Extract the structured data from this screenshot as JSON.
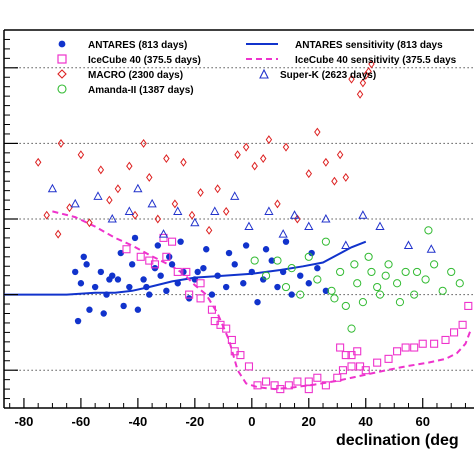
{
  "chart_data": {
    "type": "scatter",
    "title": "",
    "xlabel": "declination (deg",
    "ylabel": "",
    "xlim": [
      -87,
      78
    ],
    "ylim": [
      0,
      10
    ],
    "xticks": [
      -80,
      -60,
      -40,
      -20,
      0,
      20,
      40,
      60
    ],
    "xtick_labels": [
      "-80",
      "-60",
      "-40",
      "-20",
      "0",
      "20",
      "40",
      "60"
    ],
    "ytick_labels_visible": false,
    "grid": "horizontal-dotted",
    "legend_position": "top",
    "series": [
      {
        "name": "ANTARES (813 days)",
        "kind": "points",
        "marker": "filled-circle",
        "color": "#1133cc",
        "points": [
          [
            -62,
            3.6
          ],
          [
            -60,
            3.3
          ],
          [
            -58,
            3.8
          ],
          [
            -57,
            2.6
          ],
          [
            -55,
            3.2
          ],
          [
            -53,
            3.6
          ],
          [
            -51,
            3.0
          ],
          [
            -49,
            3.5
          ],
          [
            -47,
            3.4
          ],
          [
            -45,
            2.7
          ],
          [
            -43,
            3.2
          ],
          [
            -42,
            3.8
          ],
          [
            -40,
            2.6
          ],
          [
            -38,
            3.4
          ],
          [
            -36,
            3.0
          ],
          [
            -34,
            3.7
          ],
          [
            -32,
            3.5
          ],
          [
            -30,
            3.1
          ],
          [
            -28,
            3.8
          ],
          [
            -26,
            3.3
          ],
          [
            -24,
            3.6
          ],
          [
            -22,
            2.9
          ],
          [
            -20,
            3.4
          ],
          [
            -17,
            3.7
          ],
          [
            -14,
            3.0
          ],
          [
            -12,
            3.5
          ],
          [
            -9,
            3.2
          ],
          [
            -6,
            3.8
          ],
          [
            -3,
            3.3
          ],
          [
            0,
            3.6
          ],
          [
            2,
            2.8
          ],
          [
            4,
            3.4
          ],
          [
            7,
            3.9
          ],
          [
            9,
            3.2
          ],
          [
            11,
            3.6
          ],
          [
            14,
            3.0
          ],
          [
            17,
            3.5
          ],
          [
            20,
            3.3
          ],
          [
            23,
            3.7
          ],
          [
            26,
            3.1
          ],
          [
            -61,
            2.3
          ],
          [
            -52,
            2.5
          ],
          [
            -41,
            4.5
          ],
          [
            -33,
            4.3
          ],
          [
            -25,
            4.4
          ],
          [
            -16,
            4.2
          ],
          [
            -8,
            4.1
          ],
          [
            -2,
            4.3
          ],
          [
            5,
            4.2
          ],
          [
            12,
            4.4
          ],
          [
            21,
            4.1
          ],
          [
            -59,
            4.0
          ],
          [
            -46,
            4.1
          ],
          [
            -29,
            4.0
          ],
          [
            -50,
            3.4
          ],
          [
            -37,
            3.2
          ],
          [
            -19,
            3.6
          ]
        ]
      },
      {
        "name": "IceCube 40 (375.5 days)",
        "kind": "points",
        "marker": "open-square",
        "color": "#ee33cc",
        "points": [
          [
            -44,
            4.2
          ],
          [
            -39,
            4.0
          ],
          [
            -34,
            3.8
          ],
          [
            -30,
            4.0
          ],
          [
            -26,
            3.6
          ],
          [
            -22,
            3.0
          ],
          [
            -18,
            3.3
          ],
          [
            -14,
            2.6
          ],
          [
            -11,
            2.2
          ],
          [
            -9,
            2.1
          ],
          [
            -7,
            1.8
          ],
          [
            -4,
            1.4
          ],
          [
            -1,
            1.1
          ],
          [
            2,
            0.6
          ],
          [
            5,
            0.7
          ],
          [
            8,
            0.6
          ],
          [
            10,
            0.5
          ],
          [
            13,
            0.6
          ],
          [
            16,
            0.7
          ],
          [
            20,
            0.7
          ],
          [
            23,
            0.8
          ],
          [
            26,
            0.6
          ],
          [
            30,
            0.8
          ],
          [
            32,
            1.0
          ],
          [
            35,
            1.1
          ],
          [
            38,
            1.1
          ],
          [
            40,
            1.0
          ],
          [
            44,
            1.2
          ],
          [
            48,
            1.3
          ],
          [
            51,
            1.5
          ],
          [
            54,
            1.6
          ],
          [
            57,
            1.6
          ],
          [
            60,
            1.7
          ],
          [
            64,
            1.7
          ],
          [
            68,
            1.8
          ],
          [
            71,
            2.0
          ],
          [
            74,
            2.2
          ],
          [
            76,
            2.7
          ],
          [
            35,
            1.4
          ],
          [
            37,
            1.5
          ],
          [
            31,
            1.6
          ],
          [
            33,
            1.4
          ],
          [
            20,
            0.5
          ],
          [
            -6,
            1.5
          ],
          [
            -13,
            2.3
          ],
          [
            -18,
            2.9
          ],
          [
            -36,
            3.9
          ],
          [
            -31,
            4.5
          ],
          [
            -23,
            3.6
          ],
          [
            -28,
            4.4
          ]
        ]
      },
      {
        "name": "MACRO (2300 days)",
        "kind": "points",
        "marker": "open-diamond",
        "color": "#dd2222",
        "points": [
          [
            -75,
            6.5
          ],
          [
            -72,
            5.1
          ],
          [
            -68,
            4.6
          ],
          [
            -64,
            5.3
          ],
          [
            -60,
            6.7
          ],
          [
            -57,
            4.9
          ],
          [
            -53,
            6.3
          ],
          [
            -50,
            5.5
          ],
          [
            -47,
            5.8
          ],
          [
            -43,
            6.4
          ],
          [
            -41,
            5.1
          ],
          [
            -38,
            7.0
          ],
          [
            -36,
            6.1
          ],
          [
            -33,
            5.0
          ],
          [
            -30,
            6.6
          ],
          [
            -27,
            5.4
          ],
          [
            -24,
            6.5
          ],
          [
            -21,
            5.1
          ],
          [
            -18,
            5.7
          ],
          [
            -15,
            4.7
          ],
          [
            -12,
            5.8
          ],
          [
            -9,
            5.2
          ],
          [
            -5,
            6.7
          ],
          [
            -2,
            6.9
          ],
          [
            1,
            6.4
          ],
          [
            4,
            6.6
          ],
          [
            6,
            7.1
          ],
          [
            9,
            5.4
          ],
          [
            12,
            6.9
          ],
          [
            16,
            5.0
          ],
          [
            20,
            6.2
          ],
          [
            23,
            7.3
          ],
          [
            26,
            6.5
          ],
          [
            29,
            6.0
          ],
          [
            31,
            6.7
          ],
          [
            33,
            6.1
          ],
          [
            35,
            8.7
          ],
          [
            38,
            8.3
          ],
          [
            39,
            8.6
          ],
          [
            40,
            8.8
          ],
          [
            41,
            8.9
          ],
          [
            42,
            9.1
          ],
          [
            -67,
            7.0
          ]
        ]
      },
      {
        "name": "Super-K (2623 days)",
        "kind": "points",
        "marker": "open-triangle",
        "color": "#2233cc",
        "points": [
          [
            -70,
            5.8
          ],
          [
            -62,
            5.4
          ],
          [
            -54,
            5.6
          ],
          [
            -49,
            5.0
          ],
          [
            -43,
            5.2
          ],
          [
            -40,
            5.8
          ],
          [
            -35,
            5.4
          ],
          [
            -31,
            4.6
          ],
          [
            -26,
            5.2
          ],
          [
            -20,
            4.9
          ],
          [
            -13,
            5.2
          ],
          [
            -6,
            5.6
          ],
          [
            -1,
            4.8
          ],
          [
            6,
            5.2
          ],
          [
            11,
            4.6
          ],
          [
            15,
            5.1
          ],
          [
            20,
            4.8
          ],
          [
            26,
            5.0
          ],
          [
            33,
            4.3
          ],
          [
            39,
            5.1
          ],
          [
            45,
            4.8
          ],
          [
            55,
            4.3
          ],
          [
            63,
            4.2
          ]
        ]
      },
      {
        "name": "Amanda-II (1387 days)",
        "kind": "points",
        "marker": "open-circle",
        "color": "#33bb33",
        "points": [
          [
            1,
            3.9
          ],
          [
            5,
            3.5
          ],
          [
            9,
            3.9
          ],
          [
            12,
            3.2
          ],
          [
            14,
            3.7
          ],
          [
            17,
            3.0
          ],
          [
            20,
            4.0
          ],
          [
            23,
            3.4
          ],
          [
            26,
            4.4
          ],
          [
            28,
            3.1
          ],
          [
            31,
            3.6
          ],
          [
            33,
            2.7
          ],
          [
            35,
            2.1
          ],
          [
            37,
            3.3
          ],
          [
            39,
            2.8
          ],
          [
            42,
            3.6
          ],
          [
            45,
            3.0
          ],
          [
            48,
            3.8
          ],
          [
            51,
            3.3
          ],
          [
            54,
            3.6
          ],
          [
            57,
            3.0
          ],
          [
            61,
            3.4
          ],
          [
            64,
            3.8
          ],
          [
            67,
            3.1
          ],
          [
            70,
            3.6
          ],
          [
            73,
            3.3
          ],
          [
            41,
            4.0
          ],
          [
            47,
            3.5
          ],
          [
            52,
            2.8
          ],
          [
            58,
            3.6
          ],
          [
            62,
            4.7
          ],
          [
            29,
            2.9
          ],
          [
            36,
            3.8
          ],
          [
            44,
            3.2
          ]
        ]
      },
      {
        "name": "ANTARES sensitivity (813 days)",
        "kind": "line",
        "style": "solid",
        "color": "#1133cc",
        "points": [
          [
            -87,
            3.0
          ],
          [
            -75,
            3.0
          ],
          [
            -65,
            3.0
          ],
          [
            -55,
            3.05
          ],
          [
            -48,
            3.05
          ],
          [
            -42,
            3.1
          ],
          [
            -36,
            3.2
          ],
          [
            -28,
            3.35
          ],
          [
            -20,
            3.45
          ],
          [
            -10,
            3.5
          ],
          [
            0,
            3.55
          ],
          [
            10,
            3.65
          ],
          [
            18,
            3.75
          ],
          [
            25,
            3.85
          ],
          [
            30,
            4.05
          ],
          [
            35,
            4.25
          ],
          [
            40,
            4.4
          ]
        ]
      },
      {
        "name": "IceCube 40 sensitivity (375.5 days)",
        "kind": "line",
        "style": "dashed",
        "color": "#ee33cc",
        "points": [
          [
            -70,
            5.2
          ],
          [
            -62,
            5.05
          ],
          [
            -55,
            4.8
          ],
          [
            -48,
            4.5
          ],
          [
            -42,
            4.3
          ],
          [
            -36,
            4.05
          ],
          [
            -32,
            3.9
          ],
          [
            -28,
            3.75
          ],
          [
            -24,
            3.55
          ],
          [
            -20,
            3.25
          ],
          [
            -16,
            3.0
          ],
          [
            -12,
            2.5
          ],
          [
            -8,
            1.8
          ],
          [
            -5,
            1.0
          ],
          [
            -2,
            0.65
          ],
          [
            2,
            0.55
          ],
          [
            8,
            0.5
          ],
          [
            15,
            0.55
          ],
          [
            22,
            0.62
          ],
          [
            30,
            0.72
          ],
          [
            38,
            0.85
          ],
          [
            46,
            0.98
          ],
          [
            54,
            1.1
          ],
          [
            62,
            1.2
          ],
          [
            68,
            1.3
          ],
          [
            72,
            1.45
          ],
          [
            75,
            1.7
          ],
          [
            77,
            2.1
          ]
        ]
      }
    ]
  },
  "legend": {
    "entries": [
      {
        "label": "ANTARES (813 days)"
      },
      {
        "label": "ANTARES sensitivity (813 days"
      },
      {
        "label": "IceCube 40 (375.5 days)"
      },
      {
        "label": "IceCube 40 sensitivity (375.5 days"
      },
      {
        "label": "MACRO (2300 days)"
      },
      {
        "label": "Super-K (2623 days)"
      },
      {
        "label": "Amanda-II (1387 days)"
      }
    ]
  }
}
